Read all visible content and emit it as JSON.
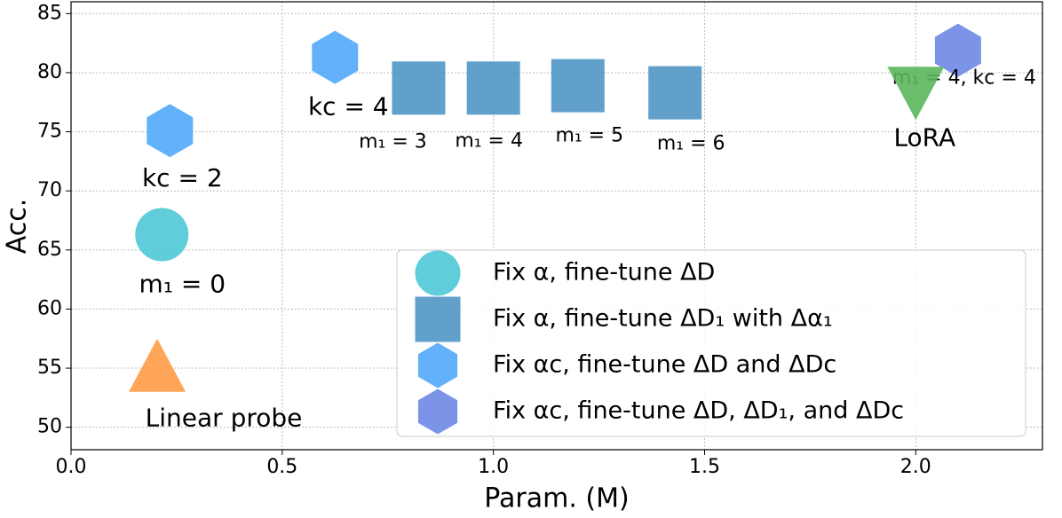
{
  "chart_data": {
    "type": "scatter",
    "xlabel": "Param. (M)",
    "ylabel": "Acc.",
    "xlim": [
      0,
      2.3
    ],
    "ylim": [
      48.1,
      86
    ],
    "xticks": [
      {
        "value": 0,
        "label": "0.0"
      },
      0.5,
      {
        "value": 1,
        "label": "1.0"
      },
      1.5,
      {
        "value": 2,
        "label": "2.0"
      }
    ],
    "yticks": [
      50,
      55,
      60,
      65,
      70,
      75,
      80,
      85
    ],
    "grid": true,
    "legend": "lower right",
    "series": [
      {
        "name": "Fix α, fine-tune ΔD",
        "marker": "circle",
        "color": "#4fc8d6",
        "x": [
          0.215
        ],
        "values": [
          66.3
        ],
        "labels": [
          "m₁ = 0"
        ]
      },
      {
        "name": "Fix α, fine-tune ΔD₁ with Δα₁",
        "marker": "square",
        "color": "#5196c6",
        "x": [
          0.823,
          1.0,
          1.2,
          1.43
        ],
        "values": [
          78.7,
          78.7,
          78.9,
          78.3
        ],
        "labels": [
          "m₁ = 3",
          "m₁ = 4",
          "m₁ = 5",
          "m₁ = 6"
        ]
      },
      {
        "name": "Fix αc, fine-tune ΔD and ΔDc",
        "marker": "hexagon",
        "color": "#52a8fb",
        "x": [
          0.234,
          0.625
        ],
        "values": [
          75.1,
          81.3
        ],
        "labels": [
          "kc = 2",
          "kc = 4"
        ]
      },
      {
        "name": "Fix αc, fine-tune ΔD, ΔD₁, and ΔDc",
        "marker": "hexagon",
        "color": "#6e88e6",
        "x": [
          2.1
        ],
        "values": [
          81.9
        ],
        "labels": [
          "m₁ = 4, kc = 4"
        ]
      },
      {
        "marker": "triangle-up",
        "color": "#ff9b45",
        "x": [
          0.204
        ],
        "values": [
          54.5
        ],
        "labels": [
          "Linear probe"
        ]
      },
      {
        "marker": "triangle-down",
        "color": "#5bb55b",
        "x": [
          2.0
        ],
        "values": [
          79.0
        ],
        "labels": [
          "LoRA"
        ]
      }
    ]
  }
}
